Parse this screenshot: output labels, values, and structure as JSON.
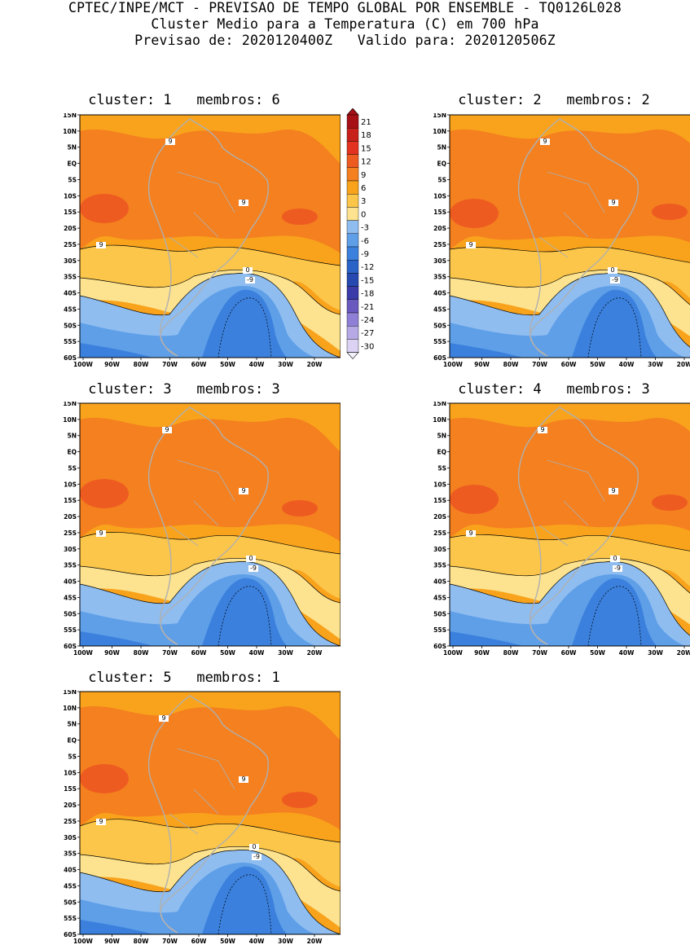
{
  "header": {
    "line1": "CPTEC/INPE/MCT - PREVISAO DE TEMPO GLOBAL POR ENSEMBLE - TQ0126L028",
    "line2": "Cluster Medio para a Temperatura (C) em 700 hPa",
    "line3": "Previsao de: 2020120400Z   Valido para: 2020120506Z"
  },
  "panels": [
    {
      "title": "cluster: 1   membros: 6"
    },
    {
      "title": "cluster: 2   membros: 2"
    },
    {
      "title": "cluster: 3   membros: 3"
    },
    {
      "title": "cluster: 4   membros: 3"
    },
    {
      "title": "cluster: 5   membros: 1"
    }
  ],
  "lat_labels": [
    "15N",
    "10N",
    "5N",
    "EQ",
    "5S",
    "10S",
    "15S",
    "20S",
    "25S",
    "30S",
    "35S",
    "40S",
    "45S",
    "50S",
    "55S",
    "60S"
  ],
  "lon_labels": [
    "100W",
    "90W",
    "80W",
    "70W",
    "60W",
    "50W",
    "40W",
    "30W",
    "20W"
  ],
  "contour_labels": {
    "warm": "9",
    "zero": "0",
    "cold": "-9"
  },
  "colorbar": {
    "labels": [
      "21",
      "18",
      "15",
      "12",
      "9",
      "6",
      "3",
      "0",
      "-3",
      "-6",
      "-9",
      "-12",
      "-15",
      "-18",
      "-21",
      "-24",
      "-27",
      "-30"
    ],
    "colors": [
      "#a50f15",
      "#c8201a",
      "#e3321f",
      "#ee5b21",
      "#f4801f",
      "#f9a31c",
      "#fbc64a",
      "#fde38f",
      "#8fbdf0",
      "#5e9fe8",
      "#3b80dd",
      "#2a63c8",
      "#2549b0",
      "#3a3aa8",
      "#6a5ac0",
      "#8f7fd6",
      "#b7a9e6",
      "#dcd3f4"
    ]
  }
}
